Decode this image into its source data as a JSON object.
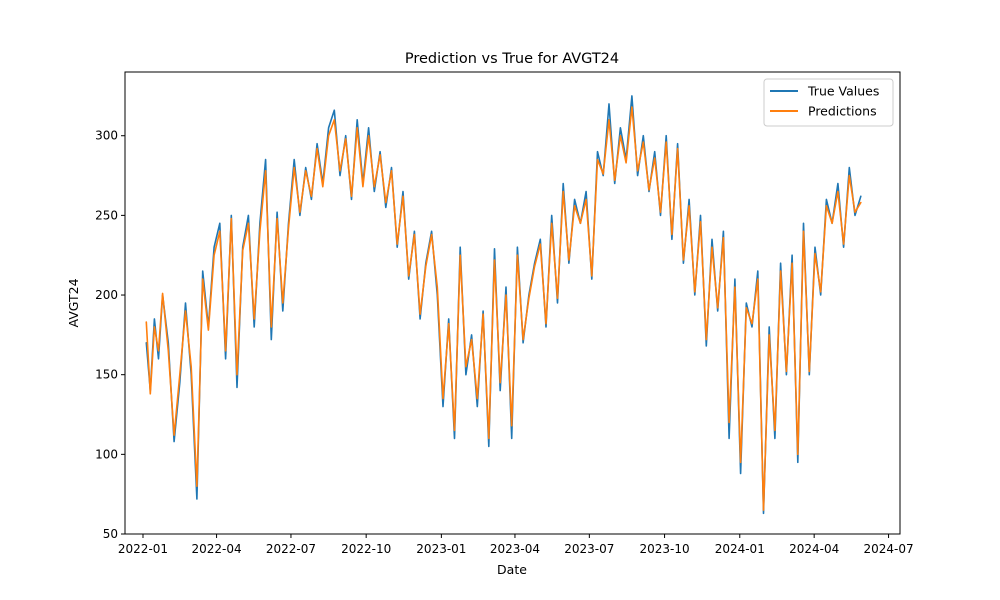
{
  "chart_data": {
    "type": "line",
    "title": "Prediction vs True for AVGT24",
    "xlabel": "Date",
    "ylabel": "AVGT24",
    "x_range": [
      "2021-12-10",
      "2024-07-15"
    ],
    "ylim": [
      50,
      340
    ],
    "x_ticks": [
      "2022-01",
      "2022-04",
      "2022-07",
      "2022-10",
      "2023-01",
      "2023-04",
      "2023-07",
      "2023-10",
      "2024-01",
      "2024-04",
      "2024-07"
    ],
    "y_ticks": [
      50,
      100,
      150,
      200,
      250,
      300
    ],
    "legend_position": "top-right",
    "grid": false,
    "series": [
      {
        "name": "True Values",
        "color": "#1f77b4",
        "x": [
          "2022-01-05",
          "2022-01-10",
          "2022-01-15",
          "2022-01-20",
          "2022-01-25",
          "2022-02-01",
          "2022-02-08",
          "2022-02-15",
          "2022-02-22",
          "2022-03-01",
          "2022-03-08",
          "2022-03-15",
          "2022-03-22",
          "2022-03-29",
          "2022-04-05",
          "2022-04-12",
          "2022-04-19",
          "2022-04-26",
          "2022-05-03",
          "2022-05-10",
          "2022-05-17",
          "2022-05-24",
          "2022-05-31",
          "2022-06-07",
          "2022-06-14",
          "2022-06-21",
          "2022-06-28",
          "2022-07-05",
          "2022-07-12",
          "2022-07-19",
          "2022-07-26",
          "2022-08-02",
          "2022-08-09",
          "2022-08-16",
          "2022-08-23",
          "2022-08-30",
          "2022-09-06",
          "2022-09-13",
          "2022-09-20",
          "2022-09-27",
          "2022-10-04",
          "2022-10-11",
          "2022-10-18",
          "2022-10-25",
          "2022-11-01",
          "2022-11-08",
          "2022-11-15",
          "2022-11-22",
          "2022-11-29",
          "2022-12-06",
          "2022-12-13",
          "2022-12-20",
          "2022-12-27",
          "2023-01-03",
          "2023-01-10",
          "2023-01-17",
          "2023-01-24",
          "2023-01-31",
          "2023-02-07",
          "2023-02-14",
          "2023-02-21",
          "2023-02-28",
          "2023-03-07",
          "2023-03-14",
          "2023-03-21",
          "2023-03-28",
          "2023-04-04",
          "2023-04-11",
          "2023-04-18",
          "2023-04-25",
          "2023-05-02",
          "2023-05-09",
          "2023-05-16",
          "2023-05-23",
          "2023-05-30",
          "2023-06-06",
          "2023-06-13",
          "2023-06-20",
          "2023-06-27",
          "2023-07-04",
          "2023-07-11",
          "2023-07-18",
          "2023-07-25",
          "2023-08-01",
          "2023-08-08",
          "2023-08-15",
          "2023-08-22",
          "2023-08-29",
          "2023-09-05",
          "2023-09-12",
          "2023-09-19",
          "2023-09-26",
          "2023-10-03",
          "2023-10-10",
          "2023-10-17",
          "2023-10-24",
          "2023-10-31",
          "2023-11-07",
          "2023-11-14",
          "2023-11-21",
          "2023-11-28",
          "2023-12-05",
          "2023-12-12",
          "2023-12-19",
          "2023-12-26",
          "2024-01-02",
          "2024-01-09",
          "2024-01-16",
          "2024-01-23",
          "2024-01-30",
          "2024-02-06",
          "2024-02-13",
          "2024-02-20",
          "2024-02-27",
          "2024-03-05",
          "2024-03-12",
          "2024-03-19",
          "2024-03-26",
          "2024-04-02",
          "2024-04-09",
          "2024-04-16",
          "2024-04-23",
          "2024-04-30",
          "2024-05-07",
          "2024-05-14",
          "2024-05-21",
          "2024-05-28"
        ],
        "values": [
          170,
          140,
          185,
          160,
          200,
          170,
          108,
          145,
          195,
          150,
          72,
          215,
          180,
          230,
          245,
          160,
          250,
          142,
          230,
          250,
          180,
          245,
          285,
          172,
          252,
          190,
          245,
          285,
          250,
          280,
          260,
          295,
          270,
          305,
          316,
          275,
          300,
          260,
          310,
          270,
          305,
          265,
          290,
          255,
          280,
          230,
          265,
          210,
          240,
          185,
          220,
          240,
          200,
          130,
          185,
          110,
          230,
          150,
          175,
          130,
          190,
          105,
          229,
          140,
          205,
          110,
          230,
          170,
          200,
          220,
          235,
          180,
          250,
          195,
          270,
          220,
          260,
          245,
          265,
          210,
          290,
          275,
          320,
          270,
          305,
          285,
          325,
          275,
          300,
          265,
          290,
          250,
          300,
          235,
          295,
          220,
          260,
          200,
          250,
          168,
          235,
          190,
          240,
          110,
          210,
          88,
          195,
          180,
          215,
          63,
          180,
          110,
          220,
          150,
          225,
          95,
          245,
          150,
          230,
          200,
          260,
          245,
          270,
          230,
          280,
          250,
          262
        ]
      },
      {
        "name": "Predictions",
        "color": "#ff7f0e",
        "x": [
          "2022-01-05",
          "2022-01-10",
          "2022-01-15",
          "2022-01-20",
          "2022-01-25",
          "2022-02-01",
          "2022-02-08",
          "2022-02-15",
          "2022-02-22",
          "2022-03-01",
          "2022-03-08",
          "2022-03-15",
          "2022-03-22",
          "2022-03-29",
          "2022-04-05",
          "2022-04-12",
          "2022-04-19",
          "2022-04-26",
          "2022-05-03",
          "2022-05-10",
          "2022-05-17",
          "2022-05-24",
          "2022-05-31",
          "2022-06-07",
          "2022-06-14",
          "2022-06-21",
          "2022-06-28",
          "2022-07-05",
          "2022-07-12",
          "2022-07-19",
          "2022-07-26",
          "2022-08-02",
          "2022-08-09",
          "2022-08-16",
          "2022-08-23",
          "2022-08-30",
          "2022-09-06",
          "2022-09-13",
          "2022-09-20",
          "2022-09-27",
          "2022-10-04",
          "2022-10-11",
          "2022-10-18",
          "2022-10-25",
          "2022-11-01",
          "2022-11-08",
          "2022-11-15",
          "2022-11-22",
          "2022-11-29",
          "2022-12-06",
          "2022-12-13",
          "2022-12-20",
          "2022-12-27",
          "2023-01-03",
          "2023-01-10",
          "2023-01-17",
          "2023-01-24",
          "2023-01-31",
          "2023-02-07",
          "2023-02-14",
          "2023-02-21",
          "2023-02-28",
          "2023-03-07",
          "2023-03-14",
          "2023-03-21",
          "2023-03-28",
          "2023-04-04",
          "2023-04-11",
          "2023-04-18",
          "2023-04-25",
          "2023-05-02",
          "2023-05-09",
          "2023-05-16",
          "2023-05-23",
          "2023-05-30",
          "2023-06-06",
          "2023-06-13",
          "2023-06-20",
          "2023-06-27",
          "2023-07-04",
          "2023-07-11",
          "2023-07-18",
          "2023-07-25",
          "2023-08-01",
          "2023-08-08",
          "2023-08-15",
          "2023-08-22",
          "2023-08-29",
          "2023-09-05",
          "2023-09-12",
          "2023-09-19",
          "2023-09-26",
          "2023-10-03",
          "2023-10-10",
          "2023-10-17",
          "2023-10-24",
          "2023-10-31",
          "2023-11-07",
          "2023-11-14",
          "2023-11-21",
          "2023-11-28",
          "2023-12-05",
          "2023-12-12",
          "2023-12-19",
          "2023-12-26",
          "2024-01-02",
          "2024-01-09",
          "2024-01-16",
          "2024-01-23",
          "2024-01-30",
          "2024-02-06",
          "2024-02-13",
          "2024-02-20",
          "2024-02-27",
          "2024-03-05",
          "2024-03-12",
          "2024-03-19",
          "2024-03-26",
          "2024-04-02",
          "2024-04-09",
          "2024-04-16",
          "2024-04-23",
          "2024-04-30",
          "2024-05-07",
          "2024-05-14",
          "2024-05-21",
          "2024-05-28"
        ],
        "values": [
          183,
          138,
          180,
          165,
          201,
          165,
          112,
          150,
          190,
          155,
          80,
          210,
          178,
          225,
          240,
          165,
          248,
          150,
          228,
          245,
          185,
          240,
          278,
          180,
          248,
          195,
          242,
          280,
          252,
          278,
          262,
          292,
          268,
          300,
          310,
          278,
          298,
          262,
          305,
          268,
          300,
          268,
          288,
          258,
          278,
          232,
          262,
          212,
          238,
          188,
          218,
          238,
          205,
          135,
          182,
          115,
          225,
          155,
          172,
          135,
          188,
          110,
          222,
          145,
          200,
          118,
          225,
          172,
          198,
          218,
          232,
          182,
          245,
          198,
          265,
          222,
          256,
          245,
          260,
          212,
          285,
          276,
          310,
          272,
          300,
          283,
          318,
          278,
          296,
          266,
          286,
          252,
          296,
          238,
          292,
          222,
          256,
          202,
          246,
          172,
          230,
          192,
          236,
          120,
          205,
          95,
          192,
          182,
          210,
          65,
          175,
          115,
          215,
          152,
          220,
          100,
          240,
          152,
          226,
          202,
          256,
          245,
          265,
          232,
          275,
          252,
          258
        ]
      }
    ]
  }
}
